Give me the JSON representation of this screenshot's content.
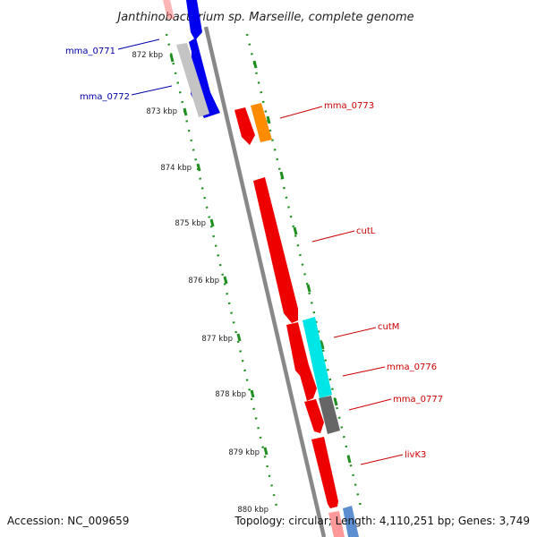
{
  "title": "Janthinobacterium sp. Marseille, complete genome",
  "footer": {
    "accession": "Accession: NC_009659",
    "topology": "Topology: circular; Length: 4,110,251 bp; Genes: 3,749"
  },
  "kbp_labels": [
    "872 kbp",
    "873 kbp",
    "874 kbp",
    "875 kbp",
    "876 kbp",
    "877 kbp",
    "878 kbp",
    "879 kbp",
    "880 kbp"
  ],
  "gene_labels": [
    "mma_0771",
    "mma_0772",
    "mma_0773",
    "cutL",
    "cutM",
    "mma_0776",
    "mma_0777",
    "livK3"
  ],
  "colors": {
    "forward_gene": "#0000ee",
    "reverse_gene": "#ee0000",
    "grey_gene": "#bbbbbb",
    "orange_gene": "#ff8c00",
    "cyan_gene": "#00e5e5",
    "dark_gene": "#666666",
    "backbone": "#888888",
    "tick": "#1f8f1f",
    "label_blue": "#0000aa",
    "label_red": "#cc0000"
  }
}
